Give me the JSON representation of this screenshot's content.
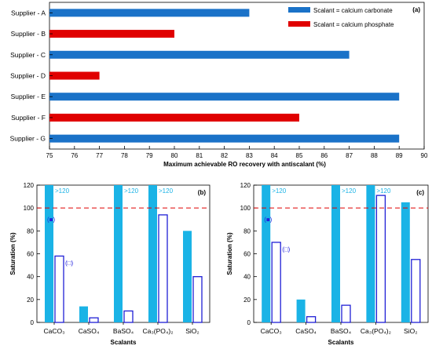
{
  "chart_data": [
    {
      "type": "bar",
      "orientation": "horizontal",
      "panel_label": "(a)",
      "categories": [
        "Supplier - A",
        "Supplier - B",
        "Supplier - C",
        "Supplier - D",
        "Supplier - E",
        "Supplier - F",
        "Supplier - G"
      ],
      "values": [
        83,
        80,
        87,
        77,
        89,
        85,
        89
      ],
      "bar_series": [
        "carbonate",
        "phosphate",
        "carbonate",
        "phosphate",
        "carbonate",
        "phosphate",
        "carbonate"
      ],
      "series": [
        {
          "name": "Scalant = calcium carbonate",
          "key": "carbonate",
          "color": "#1a72c8"
        },
        {
          "name": "Scalant = calcium phosphate",
          "key": "phosphate",
          "color": "#e00000"
        }
      ],
      "xlim": [
        75,
        90
      ],
      "xticks": [
        "75",
        "76",
        "77",
        "78",
        "79",
        "80",
        "81",
        "82",
        "83",
        "84",
        "85",
        "86",
        "87",
        "88",
        "89",
        "90"
      ],
      "xlabel": "Maximum  achievable  RO recovery  with antiscalant  (%)",
      "legend_position": "top-right"
    },
    {
      "type": "bar",
      "panel_label": "(b)",
      "categories": [
        "CaCO₃",
        "CaSO₄",
        "BaSO₄",
        "Ca₃(PO₄)₂",
        "SiO₂"
      ],
      "series": [
        {
          "name": "",
          "style": "filled",
          "color": "#1ab3e6",
          "values": [
            120,
            14,
            120,
            120,
            80
          ]
        },
        {
          "name": "",
          "style": "hollow",
          "color": "#1f1fd6",
          "values": [
            58,
            4,
            10,
            94,
            40
          ]
        }
      ],
      "threshold": 100,
      "over_labels": [
        ">120",
        "",
        ">120",
        ">120",
        ""
      ],
      "marker_labels": [
        "(■)",
        "(□)"
      ],
      "ylim": [
        0,
        120
      ],
      "yticks": [
        "0",
        "20",
        "40",
        "60",
        "80",
        "100",
        "120"
      ],
      "xlabel": "Scalants",
      "ylabel": "Saturation (%)"
    },
    {
      "type": "bar",
      "panel_label": "(c)",
      "categories": [
        "CaCO₃",
        "CaSO₄",
        "BaSO₄",
        "Ca₃(PO₄)₂",
        "SiO₂"
      ],
      "series": [
        {
          "name": "",
          "style": "filled",
          "color": "#1ab3e6",
          "values": [
            120,
            20,
            120,
            120,
            105
          ]
        },
        {
          "name": "",
          "style": "hollow",
          "color": "#1f1fd6",
          "values": [
            70,
            5,
            15,
            111,
            55
          ]
        }
      ],
      "threshold": 100,
      "over_labels": [
        ">120",
        "",
        ">120",
        ">120",
        ""
      ],
      "marker_labels": [
        "(■)",
        "(□)"
      ],
      "ylim": [
        0,
        120
      ],
      "yticks": [
        "0",
        "20",
        "40",
        "60",
        "80",
        "100",
        "120"
      ],
      "xlabel": "Scalants",
      "ylabel": "Saturation (%)"
    }
  ]
}
